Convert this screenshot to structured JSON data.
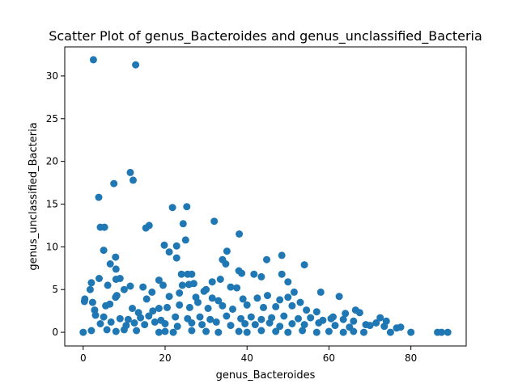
{
  "chart_data": {
    "type": "scatter",
    "title": "Scatter Plot of genus_Bacteroides and genus_unclassified_Bacteria",
    "xlabel": "genus_Bacteroides",
    "ylabel": "genus_unclassified_Bacteria",
    "xlim": [
      -4.5,
      93.5
    ],
    "ylim": [
      -1.6,
      33.4
    ],
    "xticks": [
      0,
      20,
      40,
      60,
      80
    ],
    "yticks": [
      0,
      5,
      10,
      15,
      20,
      25,
      30
    ],
    "grid": false,
    "legend": "none",
    "marker_color": "#1f77b4",
    "points": [
      [
        2.5,
        31.9
      ],
      [
        12.8,
        31.3
      ],
      [
        11.5,
        18.7
      ],
      [
        12.2,
        17.8
      ],
      [
        7.5,
        17.4
      ],
      [
        3.8,
        15.8
      ],
      [
        25.3,
        14.7
      ],
      [
        21.8,
        14.6
      ],
      [
        32.0,
        13.0
      ],
      [
        24.4,
        12.7
      ],
      [
        16.1,
        12.5
      ],
      [
        15.3,
        12.2
      ],
      [
        4.2,
        12.3
      ],
      [
        5.2,
        12.3
      ],
      [
        38.1,
        11.5
      ],
      [
        25.0,
        10.8
      ],
      [
        19.8,
        10.2
      ],
      [
        22.8,
        10.1
      ],
      [
        21.0,
        9.4
      ],
      [
        5.0,
        9.6
      ],
      [
        35.1,
        9.5
      ],
      [
        48.5,
        9.0
      ],
      [
        22.8,
        8.7
      ],
      [
        7.9,
        8.8
      ],
      [
        34.0,
        8.5
      ],
      [
        44.8,
        8.5
      ],
      [
        34.8,
        8.0
      ],
      [
        54.0,
        7.9
      ],
      [
        6.6,
        8.0
      ],
      [
        8.0,
        7.4
      ],
      [
        38.0,
        7.2
      ],
      [
        38.7,
        6.9
      ],
      [
        41.7,
        6.8
      ],
      [
        48.5,
        6.8
      ],
      [
        24.0,
        6.8
      ],
      [
        25.5,
        6.8
      ],
      [
        26.5,
        6.8
      ],
      [
        3.9,
        6.3
      ],
      [
        9.0,
        6.3
      ],
      [
        8.0,
        6.2
      ],
      [
        18.5,
        6.1
      ],
      [
        43.5,
        6.5
      ],
      [
        33.5,
        6.2
      ],
      [
        31.5,
        5.9
      ],
      [
        19.5,
        5.5
      ],
      [
        25.8,
        5.6
      ],
      [
        27.0,
        5.7
      ],
      [
        24.2,
        5.5
      ],
      [
        2.0,
        5.8
      ],
      [
        6.0,
        5.5
      ],
      [
        50.0,
        5.9
      ],
      [
        14.6,
        5.3
      ],
      [
        11.5,
        5.4
      ],
      [
        10.0,
        5.0
      ],
      [
        36.0,
        5.3
      ],
      [
        37.5,
        5.2
      ],
      [
        30.0,
        5.0
      ],
      [
        16.8,
        4.7
      ],
      [
        23.5,
        4.6
      ],
      [
        29.5,
        4.8
      ],
      [
        45.0,
        4.3
      ],
      [
        51.5,
        4.7
      ],
      [
        58.0,
        4.7
      ],
      [
        1.7,
        5.0
      ],
      [
        0.4,
        3.9
      ],
      [
        0.3,
        3.6
      ],
      [
        2.3,
        3.5
      ],
      [
        8.2,
        4.3
      ],
      [
        7.9,
        4.1
      ],
      [
        15.5,
        3.9
      ],
      [
        21.0,
        4.2
      ],
      [
        27.5,
        4.1
      ],
      [
        31.5,
        4.0
      ],
      [
        33.0,
        3.7
      ],
      [
        39.0,
        3.9
      ],
      [
        42.5,
        4.0
      ],
      [
        48.0,
        3.8
      ],
      [
        50.0,
        4.1
      ],
      [
        53.0,
        3.5
      ],
      [
        62.5,
        4.2
      ],
      [
        2.8,
        2.6
      ],
      [
        5.5,
        3.1
      ],
      [
        6.5,
        3.3
      ],
      [
        12.0,
        2.8
      ],
      [
        13.5,
        2.3
      ],
      [
        17.0,
        2.5
      ],
      [
        18.5,
        2.8
      ],
      [
        20.5,
        2.9
      ],
      [
        23.5,
        3.2
      ],
      [
        26.0,
        2.9
      ],
      [
        28.0,
        3.5
      ],
      [
        30.5,
        2.8
      ],
      [
        34.0,
        3.1
      ],
      [
        36.5,
        2.7
      ],
      [
        40.0,
        3.2
      ],
      [
        44.0,
        2.9
      ],
      [
        47.0,
        3.0
      ],
      [
        51.0,
        3.1
      ],
      [
        54.5,
        2.6
      ],
      [
        57.0,
        2.4
      ],
      [
        61.0,
        1.8
      ],
      [
        64.0,
        2.2
      ],
      [
        66.5,
        2.6
      ],
      [
        67.5,
        2.3
      ],
      [
        72.5,
        1.7
      ],
      [
        3.0,
        2.0
      ],
      [
        5.0,
        1.8
      ],
      [
        9.0,
        1.6
      ],
      [
        11.0,
        1.5
      ],
      [
        14.0,
        1.7
      ],
      [
        16.0,
        1.9
      ],
      [
        19.0,
        1.4
      ],
      [
        22.5,
        1.8
      ],
      [
        25.5,
        1.6
      ],
      [
        28.5,
        1.8
      ],
      [
        31.0,
        1.5
      ],
      [
        35.0,
        1.9
      ],
      [
        38.5,
        1.6
      ],
      [
        41.0,
        1.8
      ],
      [
        43.5,
        1.5
      ],
      [
        46.0,
        1.7
      ],
      [
        49.0,
        1.9
      ],
      [
        52.5,
        1.6
      ],
      [
        55.5,
        1.7
      ],
      [
        58.5,
        1.4
      ],
      [
        60.5,
        1.6
      ],
      [
        63.5,
        1.5
      ],
      [
        66.0,
        1.3
      ],
      [
        69.0,
        0.9
      ],
      [
        71.5,
        1.1
      ],
      [
        74.0,
        1.3
      ],
      [
        4.2,
        1.0
      ],
      [
        6.8,
        1.2
      ],
      [
        10.5,
        0.8
      ],
      [
        12.5,
        1.1
      ],
      [
        15.0,
        0.9
      ],
      [
        17.5,
        1.2
      ],
      [
        20.0,
        1.0
      ],
      [
        23.0,
        0.7
      ],
      [
        26.5,
        1.1
      ],
      [
        29.0,
        0.9
      ],
      [
        32.5,
        1.2
      ],
      [
        36.0,
        0.8
      ],
      [
        39.5,
        1.0
      ],
      [
        42.0,
        0.9
      ],
      [
        45.5,
        1.1
      ],
      [
        48.0,
        0.7
      ],
      [
        51.0,
        1.0
      ],
      [
        54.0,
        0.9
      ],
      [
        57.5,
        1.1
      ],
      [
        61.5,
        0.8
      ],
      [
        65.0,
        0.6
      ],
      [
        70.0,
        0.8
      ],
      [
        73.5,
        0.7
      ],
      [
        76.5,
        0.5
      ],
      [
        77.5,
        0.6
      ],
      [
        0.0,
        0.0
      ],
      [
        2.0,
        0.2
      ],
      [
        5.8,
        0.3
      ],
      [
        8.0,
        0.1
      ],
      [
        10.0,
        0.3
      ],
      [
        13.0,
        0.2
      ],
      [
        18.5,
        0.0
      ],
      [
        20.0,
        0.1
      ],
      [
        22.0,
        0.0
      ],
      [
        26.5,
        0.2
      ],
      [
        30.0,
        0.1
      ],
      [
        33.0,
        0.0
      ],
      [
        38.0,
        0.1
      ],
      [
        40.0,
        0.0
      ],
      [
        43.5,
        0.2
      ],
      [
        47.0,
        0.1
      ],
      [
        50.0,
        0.0
      ],
      [
        53.5,
        0.2
      ],
      [
        57.0,
        0.0
      ],
      [
        60.0,
        0.1
      ],
      [
        63.5,
        0.0
      ],
      [
        66.0,
        0.1
      ],
      [
        68.5,
        0.0
      ],
      [
        75.0,
        0.0
      ],
      [
        80.0,
        0.0
      ],
      [
        86.5,
        0.0
      ],
      [
        87.5,
        0.0
      ],
      [
        89.0,
        0.0
      ]
    ]
  }
}
